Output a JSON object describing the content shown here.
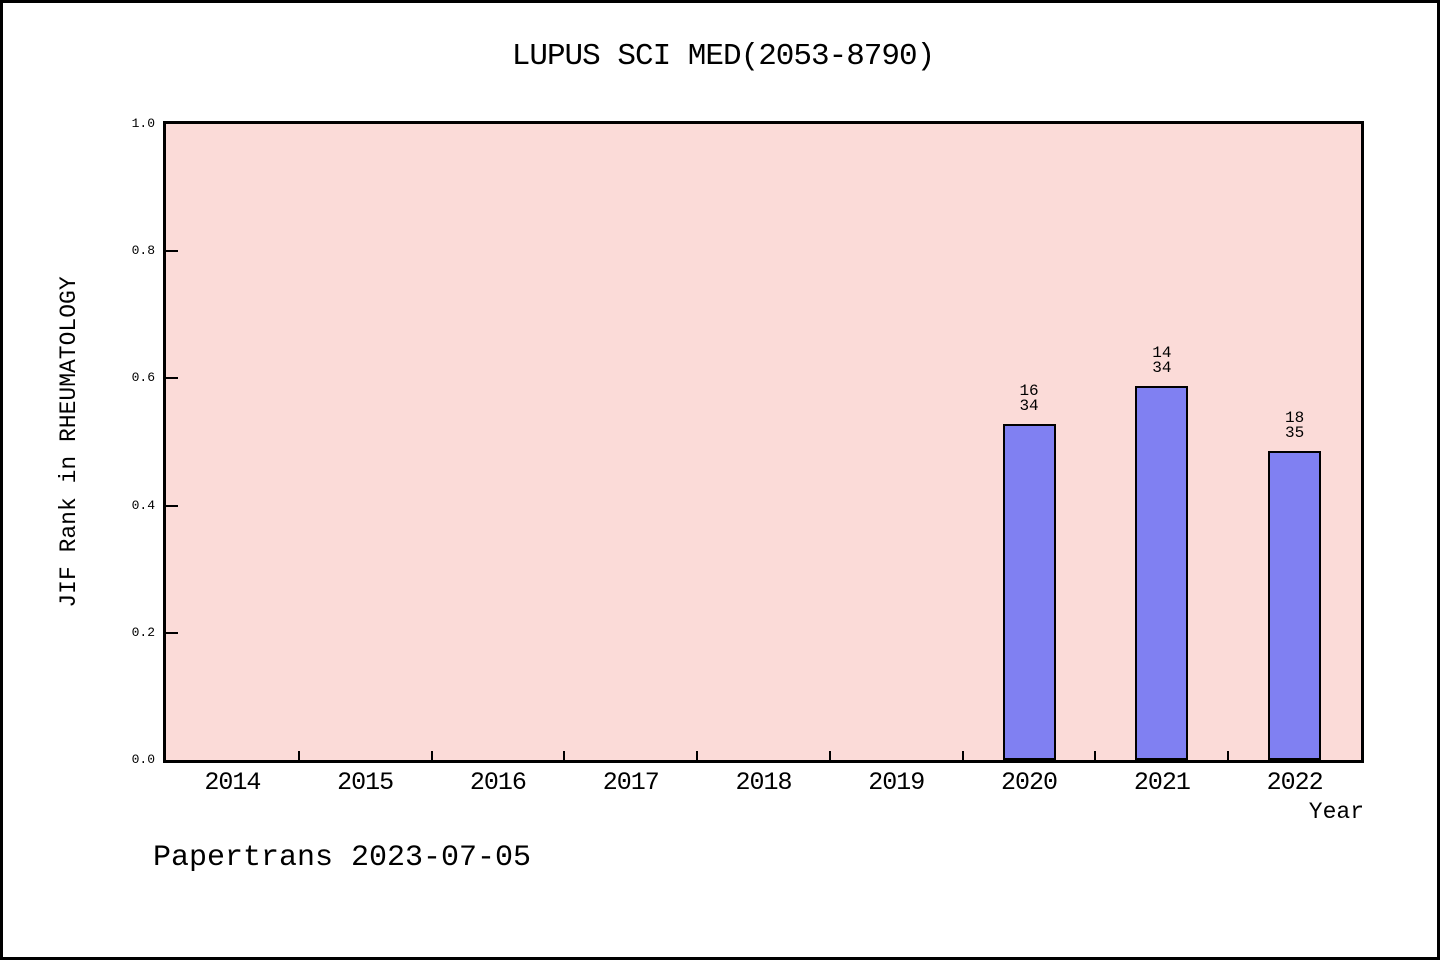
{
  "title": "LUPUS SCI MED(2053-8790)",
  "footer": "Papertrans 2023-07-05",
  "chart_data": {
    "type": "bar",
    "title": "LUPUS SCI MED(2053-8790)",
    "xlabel": "Year",
    "ylabel": "JIF Rank in RHEUMATOLOGY",
    "ylim": [
      0.0,
      1.0
    ],
    "yticks": [
      "0.0",
      "0.2",
      "0.4",
      "0.6",
      "0.8",
      "1.0"
    ],
    "categories": [
      "2014",
      "2015",
      "2016",
      "2017",
      "2018",
      "2019",
      "2020",
      "2021",
      "2022"
    ],
    "bars": [
      {
        "year": "2020",
        "rank": 16,
        "total": 34,
        "value": 0.529
      },
      {
        "year": "2021",
        "rank": 14,
        "total": 34,
        "value": 0.588
      },
      {
        "year": "2022",
        "rank": 18,
        "total": 35,
        "value": 0.486
      }
    ],
    "grid": false,
    "legend": null,
    "colors": {
      "bar_fill": "#8080f2",
      "bar_edge": "#000000",
      "plot_background": "#fbdbd8",
      "axis": "#000000",
      "text": "#000000",
      "page_background": "#ffffff"
    }
  }
}
